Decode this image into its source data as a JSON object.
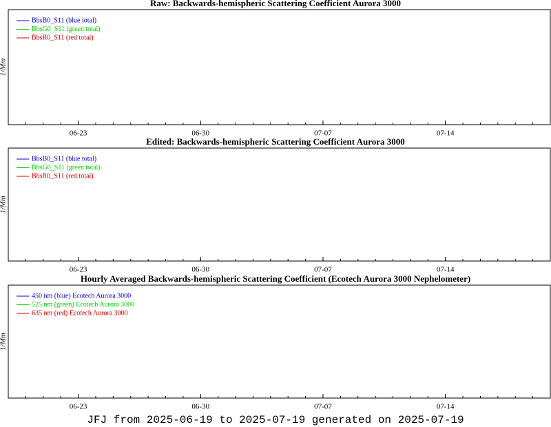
{
  "chart_data": [
    {
      "type": "line",
      "title": "Raw: Backwards-hemispheric Scattering Coefficient Aurora 3000",
      "ylabel": "1/Mm",
      "x": [],
      "xlim": [
        "06-19",
        "07-20"
      ],
      "xticks": [
        "06-23",
        "06-30",
        "07-07",
        "07-14"
      ],
      "series": [
        {
          "name": "BbsB0_S11 (blue total)",
          "color": "#0000cc",
          "values": []
        },
        {
          "name": "BbsG0_S11 (green total)",
          "color": "#00cc00",
          "values": []
        },
        {
          "name": "BbsR0_S11 (red total)",
          "color": "#cc0000",
          "values": []
        }
      ]
    },
    {
      "type": "line",
      "title": "Edited: Backwards-hemispheric Scattering Coefficient Aurora 3000",
      "ylabel": "1/Mm",
      "x": [],
      "xlim": [
        "06-19",
        "07-20"
      ],
      "xticks": [
        "06-23",
        "06-30",
        "07-07",
        "07-14"
      ],
      "series": [
        {
          "name": "BbsB0_S11 (blue total)",
          "color": "#0000cc",
          "values": []
        },
        {
          "name": "BbsG0_S11 (green total)",
          "color": "#00cc00",
          "values": []
        },
        {
          "name": "BbsR0_S11 (red total)",
          "color": "#cc0000",
          "values": []
        }
      ]
    },
    {
      "type": "line",
      "title": "Hourly Averaged Backwards-hemispheric Scattering Coefficient (Ecotech Aurora 3000 Nephelometer)",
      "ylabel": "1/Mm",
      "x": [],
      "xlim": [
        "06-19",
        "07-20"
      ],
      "xticks": [
        "06-23",
        "06-30",
        "07-07",
        "07-14"
      ],
      "series": [
        {
          "name": "450 nm (blue) Ecotech Aurora 3000",
          "color": "#0000cc",
          "values": []
        },
        {
          "name": "525 nm (green) Ecotech Aurora 3000",
          "color": "#00cc00",
          "values": []
        },
        {
          "name": "635 nm (red) Ecotech Aurora 3000",
          "color": "#cc0000",
          "values": []
        }
      ]
    }
  ],
  "footer": "JFJ from 2025-06-19 to 2025-07-19 generated on 2025-07-19"
}
